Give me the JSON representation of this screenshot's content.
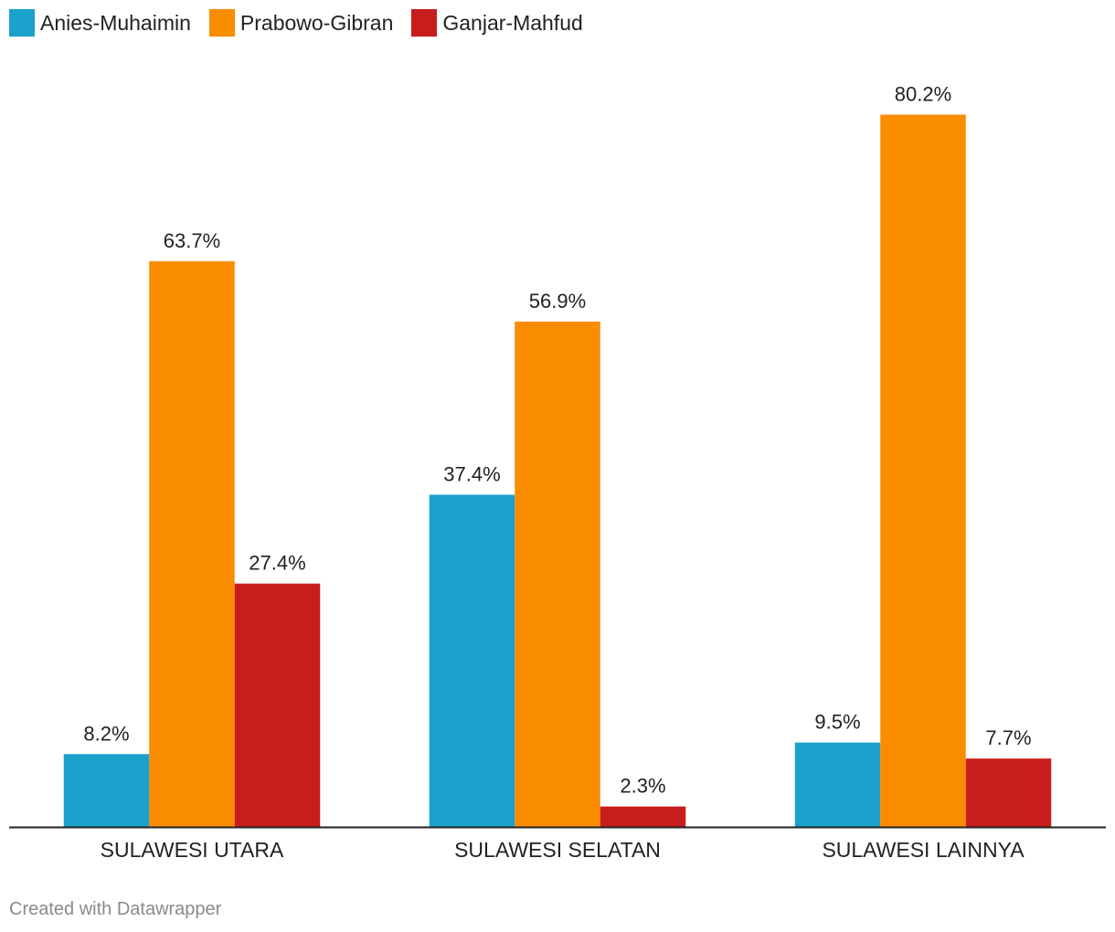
{
  "chart_data": {
    "type": "bar",
    "categories": [
      "SULAWESI UTARA",
      "SULAWESI SELATAN",
      "SULAWESI LAINNYA"
    ],
    "series": [
      {
        "name": "Anies-Muhaimin",
        "color": "#1aa1cc",
        "values": [
          8.2,
          37.4,
          9.5
        ]
      },
      {
        "name": "Prabowo-Gibran",
        "color": "#fa8c00",
        "values": [
          63.7,
          56.9,
          80.2
        ]
      },
      {
        "name": "Ganjar-Mahfud",
        "color": "#c71e1d",
        "values": [
          27.4,
          2.3,
          7.7
        ]
      }
    ],
    "value_suffix": "%",
    "ylim": [
      0,
      100
    ],
    "title": "",
    "xlabel": "",
    "ylabel": "",
    "legend_position": "top-left",
    "grid": false
  },
  "footer": {
    "credit": "Created with Datawrapper"
  }
}
